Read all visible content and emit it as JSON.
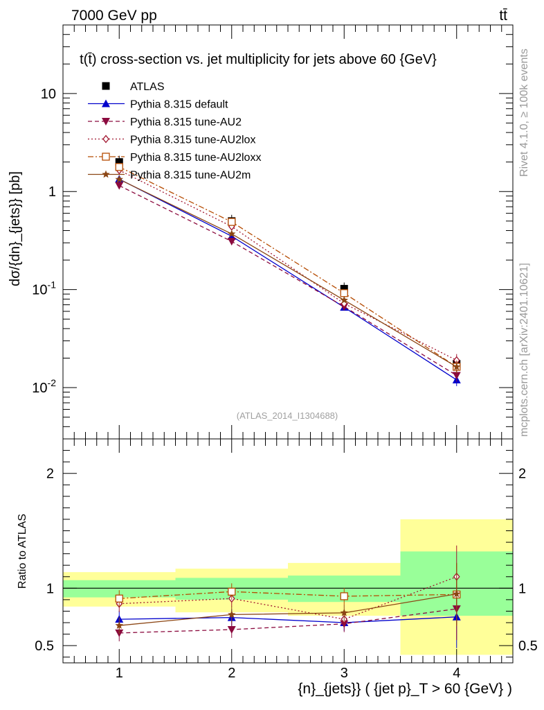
{
  "header": {
    "energy": "7000 GeV pp",
    "process": "tt̄"
  },
  "side_labels": {
    "rivet": "Rivet 4.1.0, ≥ 100k events",
    "mcplots": "mcplots.cern.ch [arXiv:2401.10621]"
  },
  "chart_data": [
    {
      "type": "line",
      "panel": "main",
      "title": "t(t̄) cross-section vs. jet multiplicity for jets above 60 {GeV}",
      "ylabel": "dσ/{dn}_{jets}} [pb]",
      "yscale": "log",
      "ylim": [
        0.003,
        50
      ],
      "xlim": [
        0.5,
        4.5
      ],
      "ytick_labels": [
        "10",
        "1",
        "10^-1",
        "10^-2"
      ],
      "watermark": "(ATLAS_2014_I1304688)",
      "x": [
        1,
        2,
        3,
        4
      ],
      "series": [
        {
          "name": "ATLAS",
          "values": [
            2.0,
            0.5,
            0.102,
            0.0175
          ],
          "color": "#000000",
          "marker": "square-filled",
          "dash": "none"
        },
        {
          "name": "Pythia 8.315 default",
          "values": [
            1.34,
            0.35,
            0.066,
            0.012
          ],
          "color": "#0000cc",
          "marker": "triangle-up",
          "dash": "solid"
        },
        {
          "name": "Pythia 8.315 tune-AU2",
          "values": [
            1.15,
            0.31,
            0.067,
            0.0133
          ],
          "color": "#8b0a3e",
          "marker": "triangle-down",
          "dash": "dashed"
        },
        {
          "name": "Pythia 8.315 tune-AU2lox",
          "values": [
            1.65,
            0.44,
            0.072,
            0.019
          ],
          "color": "#a0142e",
          "marker": "diamond-open",
          "dash": "dotted"
        },
        {
          "name": "Pythia 8.315 tune-AU2loxx",
          "values": [
            1.78,
            0.49,
            0.092,
            0.0163
          ],
          "color": "#b54a00",
          "marker": "square-open",
          "dash": "dashdot"
        },
        {
          "name": "Pythia 8.315 tune-AU2m",
          "values": [
            1.33,
            0.37,
            0.078,
            0.0163
          ],
          "color": "#8b4513",
          "marker": "star",
          "dash": "solid"
        }
      ]
    },
    {
      "type": "line",
      "panel": "ratio",
      "ylabel": "Ratio to ATLAS",
      "xlabel": "{n}_{jets}} ( {jet p}_T > 60 {GeV} )",
      "ylim": [
        0.35,
        2.3
      ],
      "xlim": [
        0.5,
        4.5
      ],
      "x_tick_labels": [
        "1",
        "2",
        "3",
        "4"
      ],
      "y_tick_labels": [
        "0.5",
        "1",
        "2"
      ],
      "bands": [
        {
          "x": [
            0.5,
            1.5
          ],
          "inner": [
            0.92,
            1.07
          ],
          "outer": [
            0.84,
            1.14
          ]
        },
        {
          "x": [
            1.5,
            2.5
          ],
          "inner": [
            0.9,
            1.09
          ],
          "outer": [
            0.79,
            1.17
          ]
        },
        {
          "x": [
            2.5,
            3.5
          ],
          "inner": [
            0.88,
            1.11
          ],
          "outer": [
            0.76,
            1.22
          ]
        },
        {
          "x": [
            3.5,
            4.5
          ],
          "inner": [
            0.76,
            1.32
          ],
          "outer": [
            0.42,
            1.6
          ]
        }
      ],
      "x": [
        1,
        2,
        3,
        4
      ],
      "series": [
        {
          "name": "Pythia 8.315 default",
          "values": [
            0.73,
            0.745,
            0.7,
            0.75
          ]
        },
        {
          "name": "Pythia 8.315 tune-AU2",
          "values": [
            0.61,
            0.64,
            0.69,
            0.82
          ]
        },
        {
          "name": "Pythia 8.315 tune-AU2lox",
          "values": [
            0.865,
            0.91,
            0.73,
            1.1
          ]
        },
        {
          "name": "Pythia 8.315 tune-AU2loxx",
          "values": [
            0.91,
            0.97,
            0.93,
            0.945
          ]
        },
        {
          "name": "Pythia 8.315 tune-AU2m",
          "values": [
            0.675,
            0.77,
            0.785,
            0.95
          ]
        }
      ]
    }
  ]
}
